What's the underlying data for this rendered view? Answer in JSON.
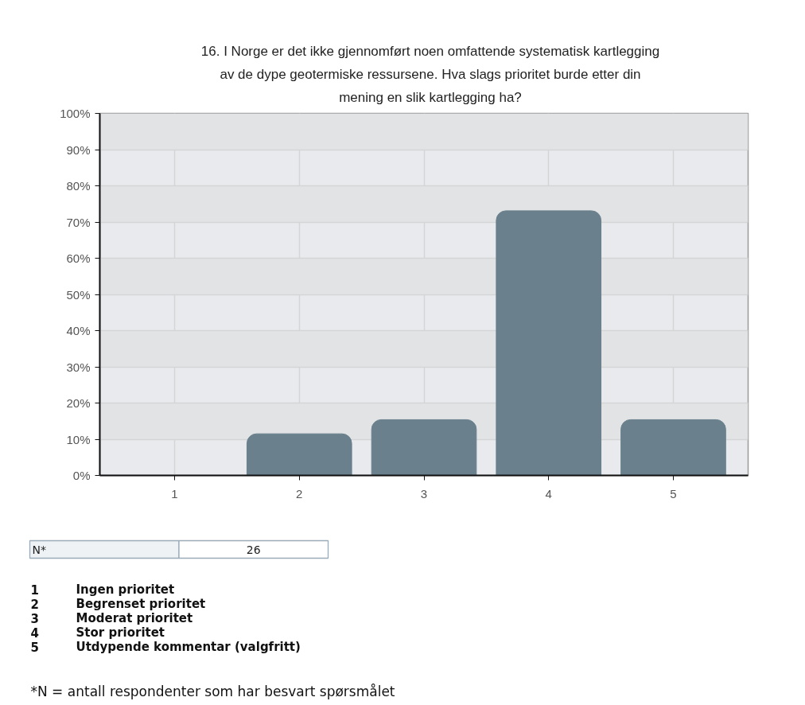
{
  "chart_data": {
    "type": "bar",
    "title": "16. I Norge er det ikke gjennomført noen omfattende systematisk kartlegging av de dype geotermiske ressursene. Hva slags prioritet burde etter din mening en slik kartlegging ha?",
    "categories": [
      "1",
      "2",
      "3",
      "4",
      "5"
    ],
    "values": [
      0,
      11.5,
      15.4,
      73.1,
      15.4
    ],
    "color": "#6a818d",
    "ylim": [
      0,
      100
    ],
    "yticks": [
      {
        "value": 0,
        "label": "0%"
      },
      {
        "value": 10,
        "label": "10%"
      },
      {
        "value": 20,
        "label": "20%"
      },
      {
        "value": 30,
        "label": "30%"
      },
      {
        "value": 40,
        "label": "40%"
      },
      {
        "value": 50,
        "label": "50%"
      },
      {
        "value": 60,
        "label": "60%"
      },
      {
        "value": 70,
        "label": "70%"
      },
      {
        "value": 80,
        "label": "80%"
      },
      {
        "value": 90,
        "label": "90%"
      },
      {
        "value": 100,
        "label": "100%"
      }
    ],
    "grid": true,
    "annotations": [
      "N*\t26",
      "1\tIngen prioritet",
      "2\tBegrenset prioritet",
      "3\tModerat prioritet",
      "4\tStor prioritet",
      "5\tUtdypende kommentar (valgfritt)",
      "*N = antall respondenter som har besvart spørsmålet"
    ]
  }
}
